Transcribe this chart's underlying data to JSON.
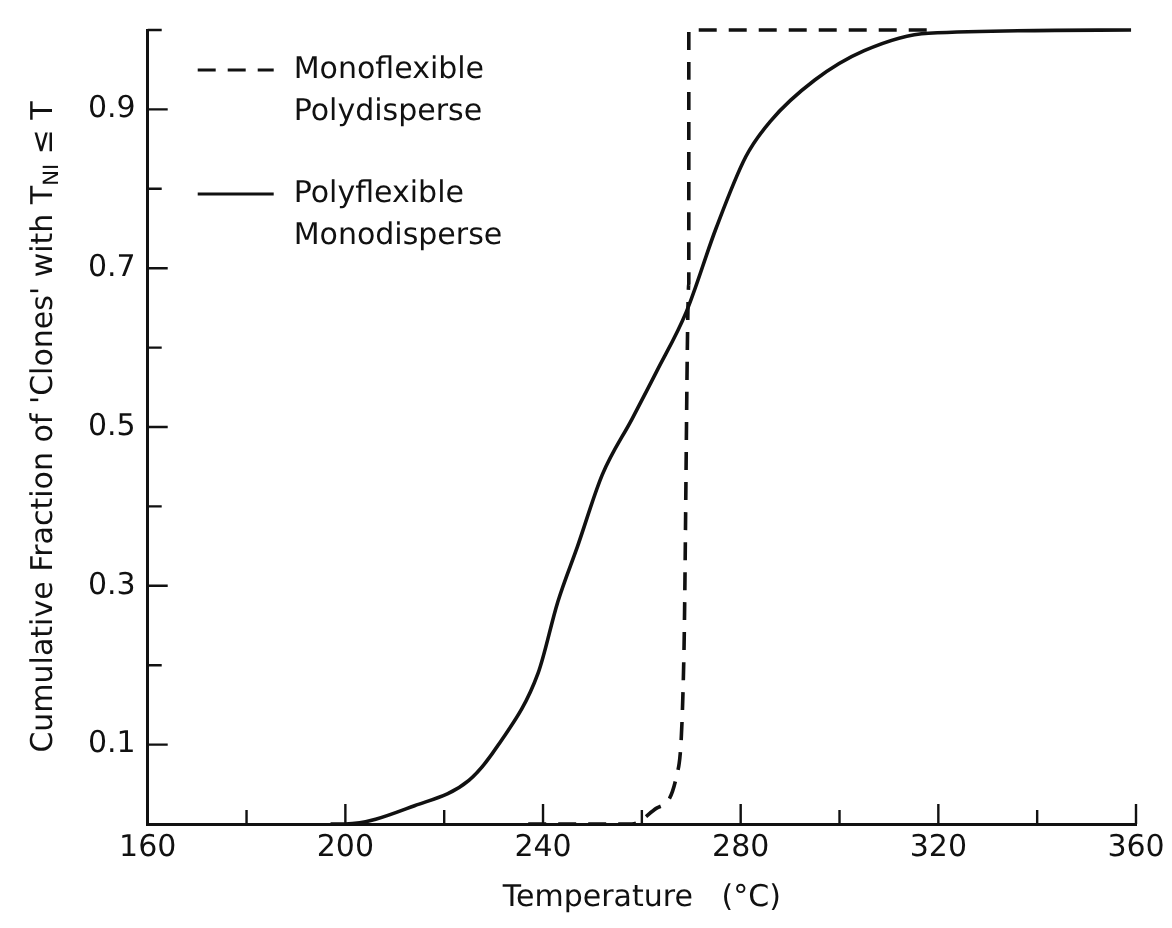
{
  "chart_data": {
    "type": "line",
    "xlabel": "Temperature   (°C)",
    "ylabel": "Cumulative Fraction of 'Clones' with T$_{NI}$ ≤ T",
    "xlim": [
      160,
      360
    ],
    "xticks": [
      160,
      {
        "value": 180,
        "label": null
      },
      200,
      {
        "value": 220,
        "label": null
      },
      240,
      {
        "value": 260,
        "label": null
      },
      280,
      {
        "value": 300,
        "label": null
      },
      320,
      {
        "value": 340,
        "label": null
      },
      360
    ],
    "ylim": [
      0,
      1
    ],
    "yticks": [
      0.1,
      {
        "value": 0.2,
        "label": null
      },
      0.3,
      {
        "value": 0.4,
        "label": null
      },
      0.5,
      {
        "value": 0.6,
        "label": null
      },
      0.7,
      {
        "value": 0.8,
        "label": null
      },
      0.9,
      {
        "value": 1.0,
        "label": null
      }
    ],
    "grid": false,
    "legend": "top left",
    "marker": "none",
    "series": [
      {
        "name": "Monoflexible Polydisperse",
        "color": "#111111",
        "line_style": "dashed",
        "x": [
          237,
          258,
          263,
          267,
          268.5,
          269.5,
          269.5,
          318
        ],
        "values": [
          0,
          0,
          0.02,
          0.06,
          0.21,
          0.68,
          1.0,
          1.0
        ]
      },
      {
        "name": "Polyflexible Monodisperse",
        "color": "#111111",
        "line_style": "solid",
        "x": [
          197,
          200,
          214,
          225,
          231,
          239,
          243,
          247,
          252,
          258,
          263,
          269,
          275,
          281,
          286,
          295,
          305,
          318,
          359
        ],
        "values": [
          0,
          0,
          0.023,
          0.055,
          0.1,
          0.19,
          0.28,
          0.35,
          0.44,
          0.51,
          0.57,
          0.645,
          0.75,
          0.84,
          0.885,
          0.937,
          0.974,
          0.996,
          1.0
        ]
      }
    ]
  }
}
